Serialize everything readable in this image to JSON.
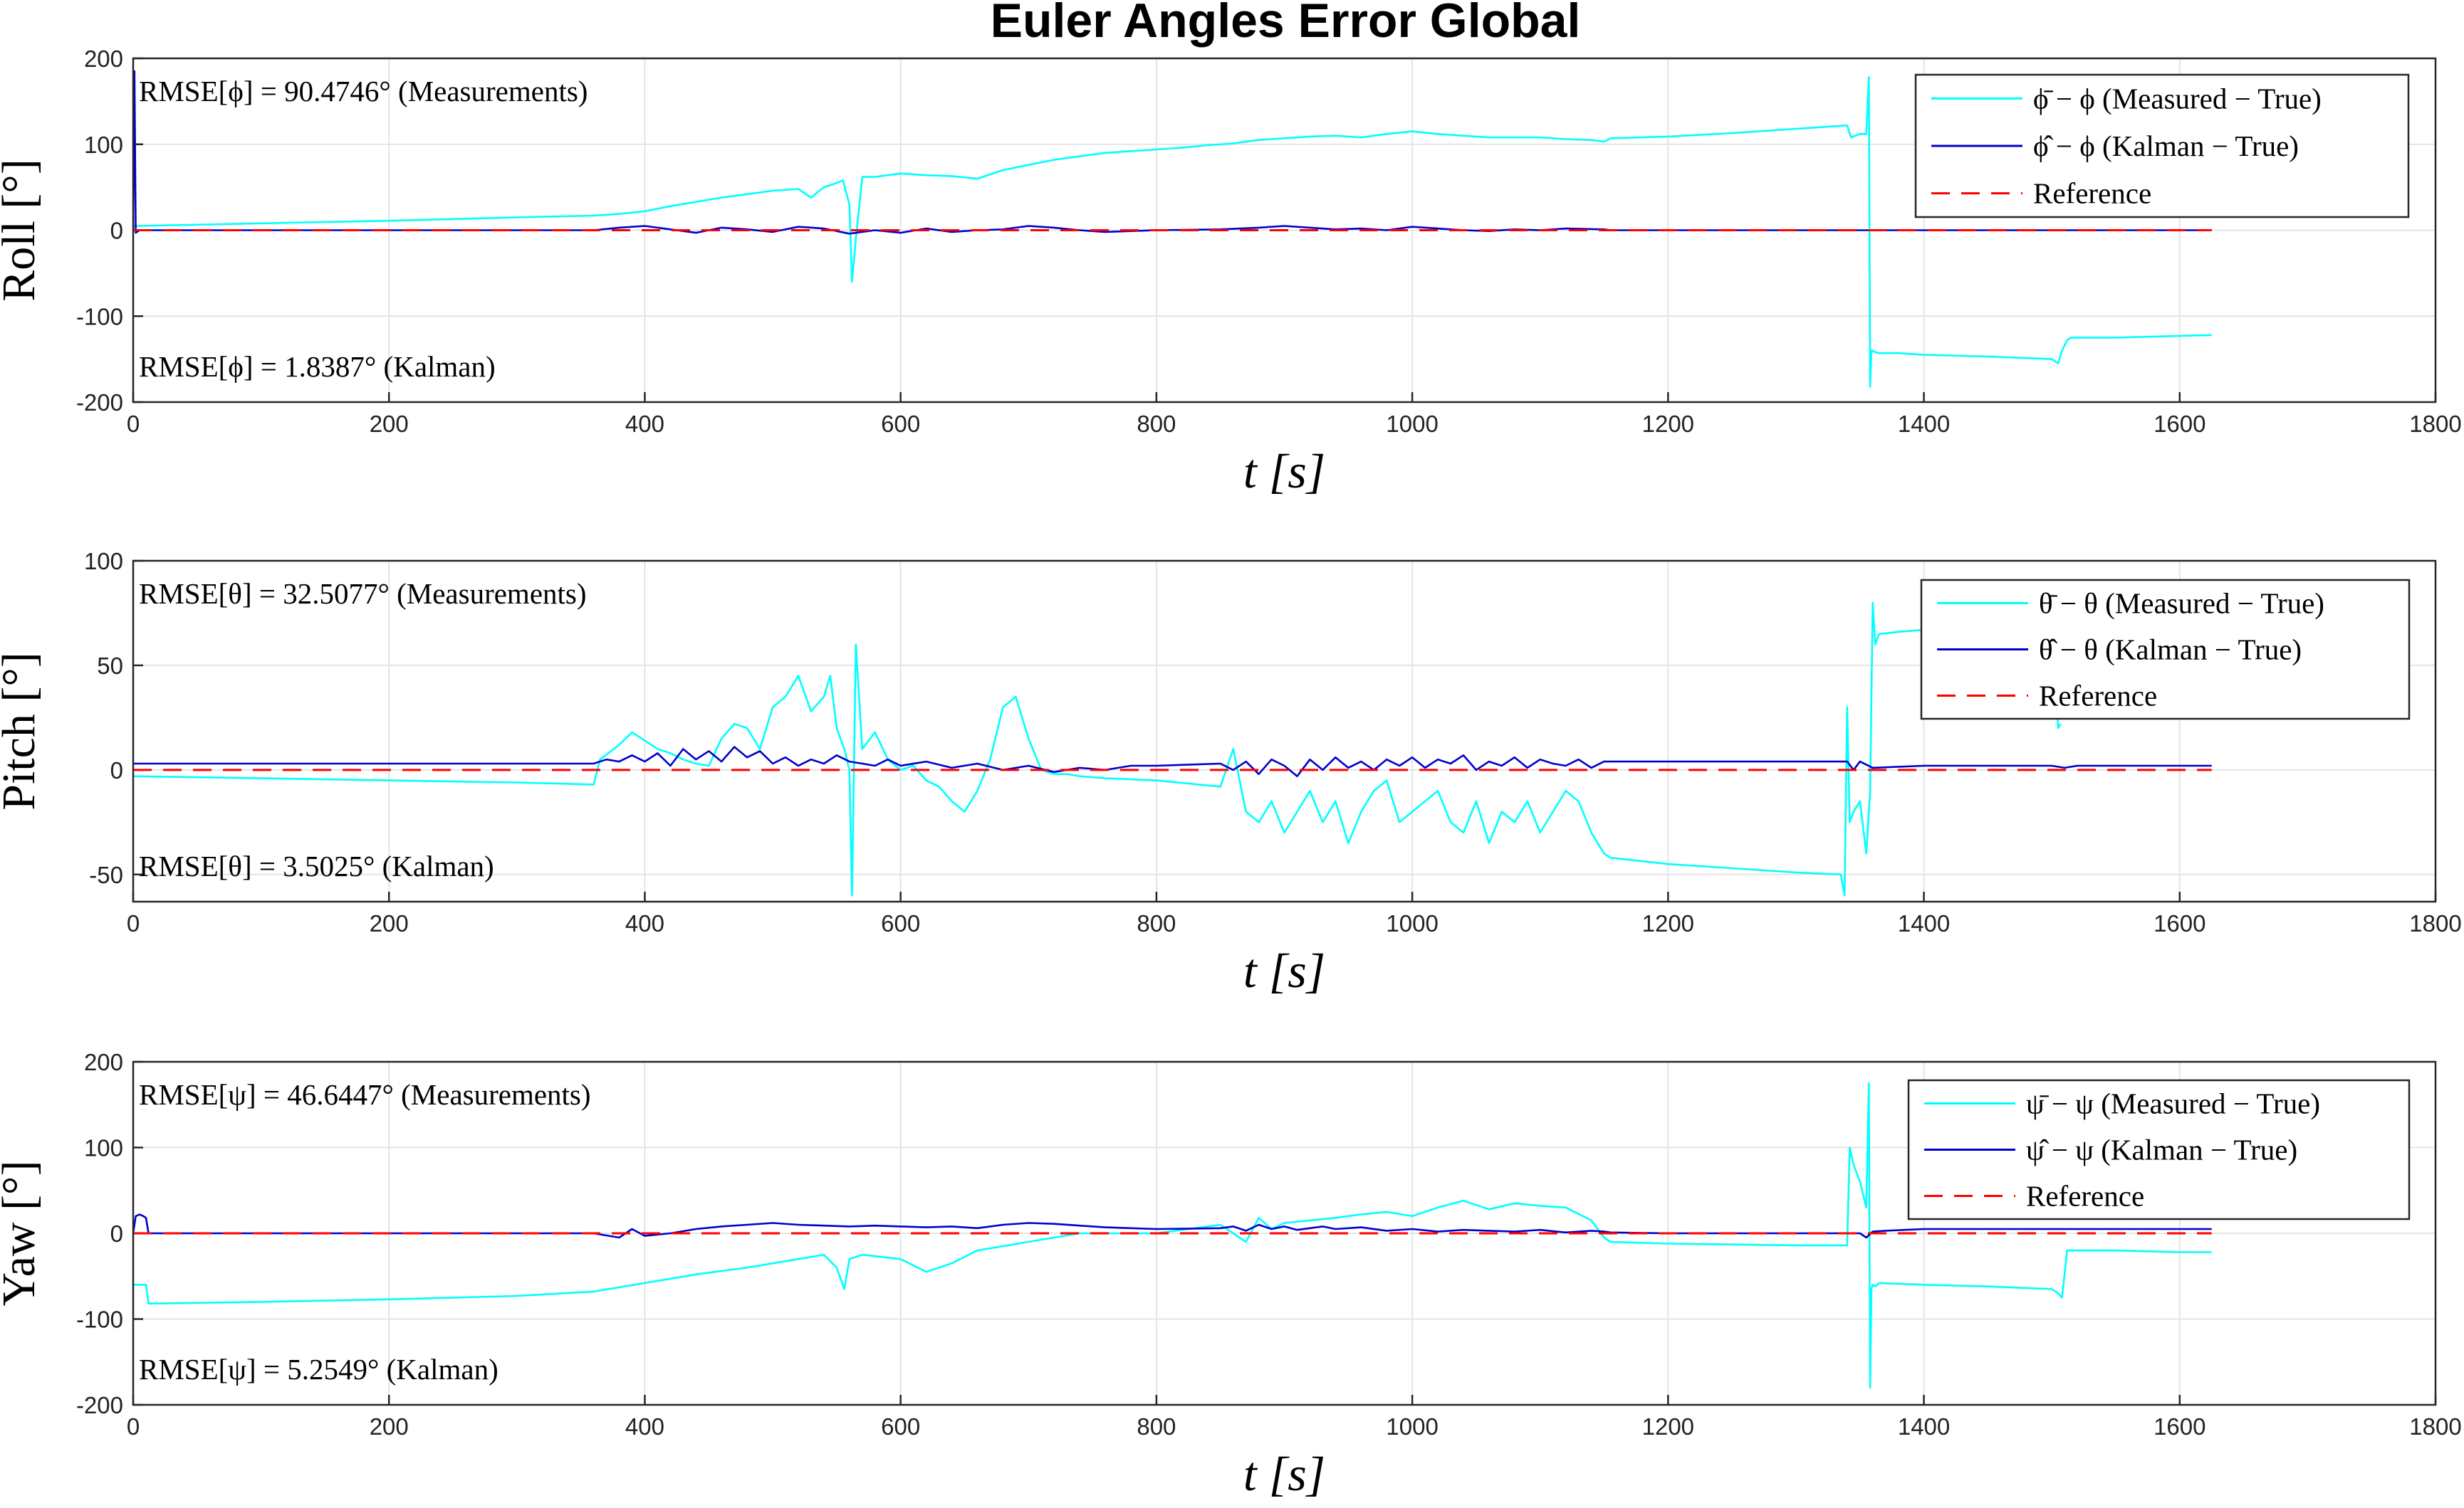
{
  "figure": {
    "title": "Euler Angles Error Global"
  },
  "colors": {
    "measured": "#00ffff",
    "kalman": "#0000cc",
    "reference": "#ff0000"
  },
  "chart_data": [
    {
      "type": "line",
      "ylabel": "Roll [°]",
      "xlabel": "t [s]",
      "xlim": [
        0,
        1800
      ],
      "ylim": [
        -200,
        200
      ],
      "xticks": [
        "0",
        "200",
        "400",
        "600",
        "800",
        "1000",
        "1200",
        "1400",
        "1600",
        "1800"
      ],
      "yticks": [
        "-200",
        "-100",
        "0",
        "100",
        "200"
      ],
      "grid": true,
      "legend_position": "top-right",
      "annotations": [
        "RMSE[ϕ] = 90.4746° (Measurements)",
        "RMSE[ϕ] = 1.8387° (Kalman)"
      ],
      "series": [
        {
          "name": "ϕ̄ − ϕ (Measured − True)",
          "color": "cyan",
          "x": [
            0,
            1,
            5,
            100,
            200,
            300,
            360,
            380,
            400,
            420,
            440,
            460,
            480,
            500,
            520,
            530,
            540,
            550,
            555,
            560,
            562,
            565,
            570,
            580,
            600,
            620,
            640,
            660,
            680,
            700,
            720,
            740,
            760,
            780,
            800,
            820,
            840,
            860,
            880,
            900,
            920,
            940,
            960,
            980,
            1000,
            1020,
            1040,
            1060,
            1080,
            1100,
            1120,
            1140,
            1150,
            1155,
            1200,
            1250,
            1300,
            1340,
            1343,
            1350,
            1355,
            1357,
            1358,
            1359,
            1360,
            1362,
            1365,
            1380,
            1400,
            1450,
            1500,
            1505,
            1508,
            1512,
            1515,
            1550,
            1600,
            1625
          ],
          "y": [
            5,
            5,
            5,
            8,
            11,
            15,
            17,
            19,
            22,
            28,
            33,
            38,
            42,
            46,
            48,
            38,
            50,
            55,
            58,
            30,
            -60,
            -10,
            62,
            62,
            66,
            64,
            63,
            60,
            70,
            76,
            82,
            86,
            90,
            92,
            94,
            96,
            99,
            101,
            105,
            107,
            109,
            110,
            108,
            112,
            115,
            112,
            110,
            108,
            108,
            108,
            106,
            105,
            103,
            107,
            109,
            113,
            118,
            122,
            108,
            112,
            112,
            178,
            -182,
            -140,
            -140,
            -142,
            -143,
            -143,
            -145,
            -147,
            -150,
            -155,
            -140,
            -128,
            -125,
            -125,
            -123,
            -122
          ]
        },
        {
          "name": "ϕ̂ − ϕ (Kalman − True)",
          "color": "blue",
          "x": [
            0,
            1,
            2,
            5,
            20,
            100,
            200,
            300,
            360,
            380,
            400,
            420,
            440,
            460,
            480,
            500,
            520,
            540,
            560,
            580,
            600,
            620,
            640,
            660,
            680,
            700,
            720,
            740,
            760,
            800,
            850,
            880,
            900,
            920,
            940,
            960,
            980,
            1000,
            1020,
            1040,
            1060,
            1080,
            1100,
            1120,
            1150,
            1155,
            1200,
            1300,
            1340,
            1360,
            1400,
            1500,
            1600,
            1625
          ],
          "y": [
            0,
            185,
            -3,
            0,
            0,
            0,
            0,
            0,
            0,
            3,
            5,
            1,
            -3,
            3,
            1,
            -2,
            4,
            2,
            -4,
            0,
            -3,
            2,
            -2,
            0,
            1,
            5,
            3,
            0,
            -2,
            0,
            1,
            3,
            5,
            3,
            1,
            2,
            0,
            4,
            2,
            0,
            -1,
            1,
            0,
            2,
            1,
            0,
            0,
            0,
            0,
            0,
            0,
            0,
            0,
            0
          ]
        },
        {
          "name": "Reference",
          "color": "red",
          "x": [
            0,
            1625
          ],
          "y": [
            0,
            0
          ]
        }
      ]
    },
    {
      "type": "line",
      "ylabel": "Pitch [°]",
      "xlabel": "t [s]",
      "xlim": [
        0,
        1800
      ],
      "ylim": [
        -63,
        100
      ],
      "xticks": [
        "0",
        "200",
        "400",
        "600",
        "800",
        "1000",
        "1200",
        "1400",
        "1600",
        "1800"
      ],
      "yticks": [
        "-50",
        "0",
        "50",
        "100"
      ],
      "grid": true,
      "legend_position": "top-right",
      "annotations": [
        "RMSE[θ] = 32.5077° (Measurements)",
        "RMSE[θ] = 3.5025° (Kalman)"
      ],
      "series": [
        {
          "name": "θ̄ − θ (Measured − True)",
          "color": "cyan",
          "x": [
            0,
            100,
            200,
            300,
            360,
            365,
            380,
            390,
            400,
            410,
            420,
            430,
            440,
            450,
            460,
            470,
            480,
            490,
            500,
            510,
            520,
            530,
            540,
            545,
            550,
            556,
            560,
            562,
            565,
            570,
            580,
            590,
            600,
            610,
            620,
            630,
            640,
            650,
            660,
            670,
            680,
            690,
            700,
            710,
            720,
            730,
            740,
            760,
            800,
            850,
            860,
            870,
            880,
            890,
            900,
            910,
            920,
            930,
            940,
            950,
            960,
            970,
            980,
            990,
            1000,
            1010,
            1020,
            1030,
            1040,
            1050,
            1060,
            1070,
            1080,
            1090,
            1100,
            1110,
            1120,
            1130,
            1140,
            1150,
            1155,
            1200,
            1250,
            1300,
            1335,
            1338,
            1340,
            1342,
            1345,
            1350,
            1355,
            1358,
            1360,
            1362,
            1365,
            1380,
            1400,
            1450,
            1500,
            1505,
            1507
          ],
          "y": [
            -3,
            -4,
            -5,
            -6,
            -7,
            5,
            12,
            18,
            14,
            10,
            8,
            5,
            3,
            2,
            15,
            22,
            20,
            10,
            30,
            35,
            45,
            28,
            35,
            45,
            20,
            10,
            0,
            -60,
            60,
            10,
            18,
            5,
            0,
            2,
            -5,
            -8,
            -15,
            -20,
            -10,
            5,
            30,
            35,
            15,
            0,
            -2,
            -2,
            -3,
            -4,
            -5,
            -8,
            10,
            -20,
            -25,
            -15,
            -30,
            -20,
            -10,
            -25,
            -15,
            -35,
            -20,
            -10,
            -5,
            -25,
            -20,
            -15,
            -10,
            -25,
            -30,
            -15,
            -35,
            -20,
            -25,
            -15,
            -30,
            -20,
            -10,
            -15,
            -30,
            -40,
            -42,
            -45,
            -47,
            -49,
            -50,
            -60,
            30,
            -25,
            -20,
            -15,
            -40,
            -10,
            80,
            60,
            65,
            66,
            67,
            68,
            70,
            20,
            22
          ]
        },
        {
          "name": "θ̂ − θ (Kalman − True)",
          "color": "blue",
          "x": [
            0,
            20,
            100,
            200,
            300,
            360,
            370,
            380,
            390,
            400,
            410,
            420,
            430,
            440,
            450,
            460,
            470,
            480,
            490,
            500,
            510,
            520,
            530,
            540,
            550,
            560,
            570,
            580,
            590,
            600,
            620,
            640,
            660,
            680,
            700,
            720,
            740,
            760,
            780,
            800,
            850,
            860,
            870,
            880,
            890,
            900,
            910,
            920,
            930,
            940,
            950,
            960,
            970,
            980,
            990,
            1000,
            1010,
            1020,
            1030,
            1040,
            1050,
            1060,
            1070,
            1080,
            1090,
            1100,
            1110,
            1120,
            1130,
            1140,
            1150,
            1155,
            1200,
            1300,
            1340,
            1345,
            1350,
            1360,
            1400,
            1500,
            1510,
            1520,
            1600,
            1625
          ],
          "y": [
            3,
            3,
            3,
            3,
            3,
            3,
            5,
            4,
            7,
            4,
            8,
            2,
            10,
            5,
            9,
            4,
            11,
            6,
            9,
            3,
            6,
            2,
            5,
            3,
            7,
            4,
            3,
            2,
            5,
            2,
            4,
            1,
            3,
            0,
            2,
            -1,
            1,
            0,
            2,
            2,
            3,
            0,
            4,
            -2,
            5,
            2,
            -3,
            5,
            0,
            6,
            1,
            4,
            0,
            5,
            2,
            6,
            1,
            5,
            3,
            7,
            0,
            4,
            2,
            6,
            1,
            5,
            3,
            2,
            5,
            1,
            4,
            4,
            4,
            4,
            4,
            0,
            4,
            1,
            2,
            2,
            1,
            2,
            2,
            2
          ]
        },
        {
          "name": "Reference",
          "color": "red",
          "x": [
            0,
            1625
          ],
          "y": [
            0,
            0
          ]
        }
      ]
    },
    {
      "type": "line",
      "ylabel": "Yaw [°]",
      "xlabel": "t [s]",
      "xlim": [
        0,
        1800
      ],
      "ylim": [
        -200,
        200
      ],
      "xticks": [
        "0",
        "200",
        "400",
        "600",
        "800",
        "1000",
        "1200",
        "1400",
        "1600",
        "1800"
      ],
      "yticks": [
        "-200",
        "-100",
        "0",
        "100",
        "200"
      ],
      "grid": true,
      "legend_position": "top-right",
      "annotations": [
        "RMSE[ψ] = 46.6447° (Measurements)",
        "RMSE[ψ] = 5.2549° (Kalman)"
      ],
      "series": [
        {
          "name": "ψ̄ − ψ (Measured − True)",
          "color": "cyan",
          "x": [
            0,
            5,
            10,
            12,
            100,
            200,
            300,
            360,
            400,
            440,
            480,
            500,
            520,
            540,
            550,
            556,
            560,
            570,
            600,
            620,
            640,
            660,
            680,
            700,
            720,
            740,
            760,
            800,
            850,
            870,
            880,
            890,
            900,
            920,
            940,
            960,
            980,
            1000,
            1020,
            1040,
            1060,
            1080,
            1100,
            1120,
            1140,
            1150,
            1155,
            1200,
            1250,
            1300,
            1340,
            1342,
            1345,
            1350,
            1355,
            1357,
            1358,
            1359,
            1360,
            1362,
            1365,
            1400,
            1450,
            1500,
            1505,
            1508,
            1512,
            1515,
            1550,
            1600,
            1625
          ],
          "y": [
            -60,
            -60,
            -60,
            -82,
            -80,
            -77,
            -73,
            -68,
            -58,
            -48,
            -40,
            -35,
            -30,
            -25,
            -40,
            -65,
            -30,
            -25,
            -30,
            -45,
            -35,
            -20,
            -15,
            -10,
            -5,
            0,
            0,
            0,
            10,
            -10,
            18,
            5,
            12,
            15,
            18,
            22,
            25,
            20,
            30,
            38,
            28,
            35,
            32,
            30,
            15,
            -5,
            -10,
            -12,
            -13,
            -14,
            -14,
            100,
            80,
            60,
            30,
            175,
            -180,
            -65,
            -60,
            -62,
            -58,
            -60,
            -62,
            -65,
            -70,
            -75,
            -20,
            -20,
            -20,
            -22,
            -22
          ]
        },
        {
          "name": "ψ̂ − ψ (Kalman − True)",
          "color": "blue",
          "x": [
            0,
            2,
            5,
            8,
            10,
            12,
            15,
            20,
            100,
            200,
            300,
            360,
            380,
            390,
            400,
            420,
            440,
            460,
            480,
            500,
            520,
            540,
            560,
            580,
            600,
            620,
            640,
            660,
            680,
            700,
            720,
            740,
            760,
            780,
            800,
            850,
            860,
            870,
            880,
            890,
            900,
            910,
            920,
            930,
            940,
            960,
            980,
            1000,
            1020,
            1040,
            1060,
            1080,
            1100,
            1120,
            1140,
            1150,
            1155,
            1200,
            1300,
            1340,
            1350,
            1355,
            1360,
            1370,
            1400,
            1500,
            1600,
            1625
          ],
          "y": [
            0,
            20,
            22,
            20,
            18,
            0,
            0,
            0,
            0,
            0,
            0,
            0,
            -5,
            5,
            -3,
            0,
            5,
            8,
            10,
            12,
            10,
            9,
            8,
            9,
            8,
            7,
            8,
            6,
            10,
            12,
            11,
            9,
            7,
            6,
            5,
            6,
            8,
            3,
            10,
            5,
            8,
            4,
            6,
            8,
            5,
            7,
            3,
            5,
            2,
            4,
            3,
            2,
            4,
            1,
            3,
            2,
            1,
            0,
            0,
            0,
            0,
            -5,
            2,
            3,
            5,
            5,
            5,
            5
          ]
        },
        {
          "name": "Reference",
          "color": "red",
          "x": [
            0,
            1625
          ],
          "y": [
            0,
            0
          ]
        }
      ]
    }
  ]
}
